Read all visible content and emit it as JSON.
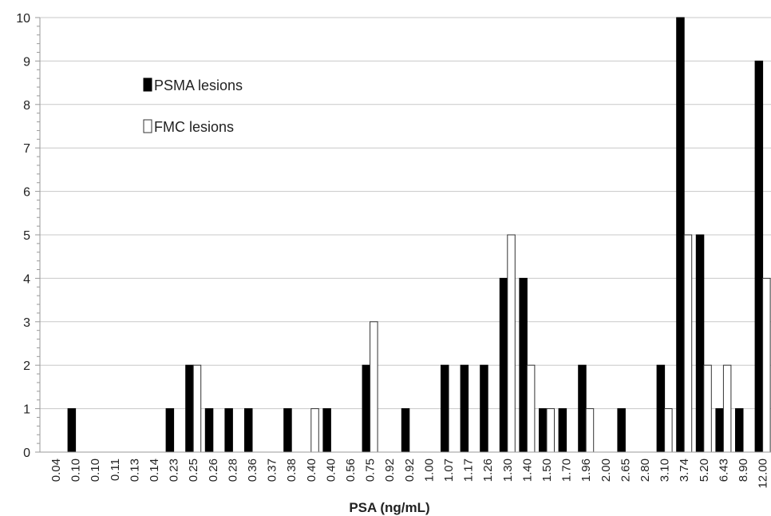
{
  "chart_data": {
    "type": "bar",
    "xlabel": "PSA (ng/mL)",
    "ylabel": "",
    "ylim": [
      0,
      10
    ],
    "y_ticks": [
      0,
      1,
      2,
      3,
      4,
      5,
      6,
      7,
      8,
      9,
      10
    ],
    "grid": "horizontal",
    "legend_position": "top-left",
    "categories": [
      "0.04",
      "0.10",
      "0.10",
      "0.11",
      "0.13",
      "0.14",
      "0.23",
      "0.25",
      "0.26",
      "0.28",
      "0.36",
      "0.37",
      "0.38",
      "0.40",
      "0.40",
      "0.56",
      "0.75",
      "0.92",
      "0.92",
      "1.00",
      "1.07",
      "1.17",
      "1.26",
      "1.30",
      "1.40",
      "1.50",
      "1.70",
      "1.96",
      "2.00",
      "2.65",
      "2.80",
      "3.10",
      "3.74",
      "5.20",
      "6.43",
      "8.90",
      "12.00"
    ],
    "series": [
      {
        "name": "PSMA lesions",
        "color": "#000000",
        "values": [
          0,
          1,
          0,
          0,
          0,
          0,
          1,
          2,
          1,
          1,
          1,
          0,
          1,
          0,
          1,
          0,
          2,
          0,
          1,
          0,
          2,
          2,
          2,
          4,
          4,
          1,
          1,
          2,
          0,
          1,
          0,
          2,
          10,
          5,
          1,
          1,
          9
        ]
      },
      {
        "name": "FMC lesions",
        "color": "#ffffff",
        "values": [
          0,
          0,
          0,
          0,
          0,
          0,
          0,
          2,
          0,
          0,
          0,
          0,
          0,
          1,
          0,
          0,
          3,
          0,
          0,
          0,
          0,
          0,
          0,
          5,
          2,
          1,
          0,
          1,
          0,
          0,
          0,
          1,
          5,
          2,
          2,
          0,
          4
        ]
      }
    ]
  }
}
